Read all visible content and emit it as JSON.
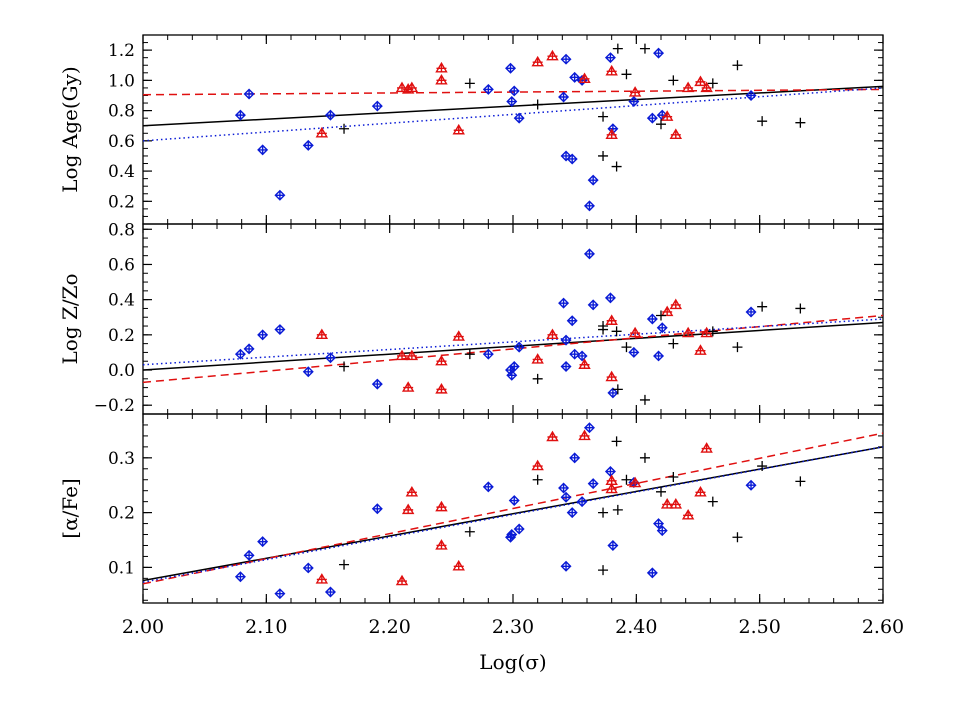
{
  "colors": {
    "blue": "#0a1bd6",
    "red": "#e01010",
    "black": "#000000",
    "axes": "#000000"
  },
  "chart_data": [
    {
      "type": "scatter",
      "panel": "top",
      "ylabel": "Log Age(Gy)",
      "xlim": [
        2.0,
        2.6
      ],
      "ylim": [
        0.05,
        1.3
      ],
      "yticks": [
        {
          "v": 0.2,
          "label": "0.2"
        },
        {
          "v": 0.4,
          "label": "0.4"
        },
        {
          "v": 0.6,
          "label": "0.6"
        },
        {
          "v": 0.8,
          "label": "0.8"
        },
        {
          "v": 1.0,
          "label": "1.0"
        },
        {
          "v": 1.2,
          "label": "1.2"
        }
      ],
      "yminor_step": 0.05,
      "series": [
        {
          "marker": "diamond",
          "color": "blue",
          "points": [
            [
              2.079,
              0.77
            ],
            [
              2.086,
              0.91
            ],
            [
              2.097,
              0.54
            ],
            [
              2.111,
              0.24
            ],
            [
              2.134,
              0.57
            ],
            [
              2.152,
              0.77
            ],
            [
              2.19,
              0.83
            ],
            [
              2.28,
              0.94
            ],
            [
              2.298,
              1.08
            ],
            [
              2.299,
              0.86
            ],
            [
              2.301,
              0.93
            ],
            [
              2.305,
              0.75
            ],
            [
              2.341,
              0.89
            ],
            [
              2.343,
              1.14
            ],
            [
              2.343,
              0.5
            ],
            [
              2.348,
              0.48
            ],
            [
              2.35,
              1.02
            ],
            [
              2.356,
              1.0
            ],
            [
              2.362,
              0.17
            ],
            [
              2.365,
              0.34
            ],
            [
              2.379,
              1.15
            ],
            [
              2.381,
              0.68
            ],
            [
              2.398,
              0.86
            ],
            [
              2.413,
              0.75
            ],
            [
              2.418,
              1.18
            ],
            [
              2.421,
              0.77
            ],
            [
              2.493,
              0.9
            ]
          ]
        },
        {
          "marker": "triangle",
          "color": "red",
          "points": [
            [
              2.145,
              0.65
            ],
            [
              2.21,
              0.95
            ],
            [
              2.215,
              0.94
            ],
            [
              2.218,
              0.95
            ],
            [
              2.242,
              1.08
            ],
            [
              2.242,
              1.0
            ],
            [
              2.256,
              0.67
            ],
            [
              2.32,
              1.12
            ],
            [
              2.332,
              1.16
            ],
            [
              2.358,
              1.01
            ],
            [
              2.38,
              1.06
            ],
            [
              2.38,
              0.64
            ],
            [
              2.399,
              0.92
            ],
            [
              2.425,
              0.76
            ],
            [
              2.432,
              0.64
            ],
            [
              2.442,
              0.95
            ],
            [
              2.452,
              0.99
            ],
            [
              2.457,
              0.95
            ]
          ]
        },
        {
          "marker": "plus",
          "color": "black",
          "points": [
            [
              2.163,
              0.68
            ],
            [
              2.265,
              0.98
            ],
            [
              2.32,
              0.84
            ],
            [
              2.373,
              0.76
            ],
            [
              2.373,
              0.5
            ],
            [
              2.384,
              0.43
            ],
            [
              2.385,
              1.21
            ],
            [
              2.392,
              1.04
            ],
            [
              2.407,
              1.21
            ],
            [
              2.42,
              0.71
            ],
            [
              2.43,
              1.0
            ],
            [
              2.462,
              0.98
            ],
            [
              2.482,
              1.1
            ],
            [
              2.502,
              0.73
            ],
            [
              2.533,
              0.72
            ]
          ]
        }
      ],
      "fits": [
        {
          "style": "solid",
          "color": "black",
          "y0": 0.7,
          "y1": 0.96
        },
        {
          "style": "dashed",
          "color": "red",
          "y0": 0.905,
          "y1": 0.94
        },
        {
          "style": "dotted",
          "color": "blue",
          "y0": 0.6,
          "y1": 0.95
        }
      ]
    },
    {
      "type": "scatter",
      "panel": "middle",
      "ylabel": "Log Z/Zo",
      "xlim": [
        2.0,
        2.6
      ],
      "ylim": [
        -0.25,
        0.83
      ],
      "yticks": [
        {
          "v": -0.2,
          "label": "−0.2"
        },
        {
          "v": 0.0,
          "label": "0.0"
        },
        {
          "v": 0.2,
          "label": "0.2"
        },
        {
          "v": 0.4,
          "label": "0.4"
        },
        {
          "v": 0.6,
          "label": "0.6"
        },
        {
          "v": 0.8,
          "label": "0.8"
        }
      ],
      "yminor_step": 0.05,
      "series": [
        {
          "marker": "diamond",
          "color": "blue",
          "points": [
            [
              2.079,
              0.09
            ],
            [
              2.086,
              0.12
            ],
            [
              2.097,
              0.2
            ],
            [
              2.111,
              0.23
            ],
            [
              2.134,
              -0.01
            ],
            [
              2.152,
              0.07
            ],
            [
              2.19,
              -0.08
            ],
            [
              2.28,
              0.09
            ],
            [
              2.298,
              0.0
            ],
            [
              2.299,
              -0.03
            ],
            [
              2.301,
              0.02
            ],
            [
              2.305,
              0.13
            ],
            [
              2.341,
              0.38
            ],
            [
              2.343,
              0.02
            ],
            [
              2.343,
              0.17
            ],
            [
              2.348,
              0.28
            ],
            [
              2.35,
              0.09
            ],
            [
              2.356,
              0.08
            ],
            [
              2.362,
              0.66
            ],
            [
              2.365,
              0.37
            ],
            [
              2.379,
              0.41
            ],
            [
              2.381,
              -0.13
            ],
            [
              2.398,
              0.1
            ],
            [
              2.413,
              0.29
            ],
            [
              2.418,
              0.08
            ],
            [
              2.421,
              0.24
            ],
            [
              2.493,
              0.33
            ]
          ]
        },
        {
          "marker": "triangle",
          "color": "red",
          "points": [
            [
              2.145,
              0.2
            ],
            [
              2.21,
              0.08
            ],
            [
              2.215,
              -0.1
            ],
            [
              2.218,
              0.08
            ],
            [
              2.242,
              -0.11
            ],
            [
              2.242,
              0.05
            ],
            [
              2.256,
              0.19
            ],
            [
              2.32,
              0.06
            ],
            [
              2.332,
              0.2
            ],
            [
              2.358,
              0.03
            ],
            [
              2.38,
              0.28
            ],
            [
              2.38,
              -0.04
            ],
            [
              2.399,
              0.21
            ],
            [
              2.425,
              0.33
            ],
            [
              2.432,
              0.37
            ],
            [
              2.442,
              0.21
            ],
            [
              2.452,
              0.11
            ],
            [
              2.457,
              0.21
            ]
          ]
        },
        {
          "marker": "plus",
          "color": "black",
          "points": [
            [
              2.163,
              0.02
            ],
            [
              2.265,
              0.09
            ],
            [
              2.32,
              -0.05
            ],
            [
              2.373,
              0.23
            ],
            [
              2.373,
              0.25
            ],
            [
              2.384,
              0.22
            ],
            [
              2.385,
              -0.11
            ],
            [
              2.392,
              0.13
            ],
            [
              2.407,
              -0.17
            ],
            [
              2.42,
              0.31
            ],
            [
              2.43,
              0.15
            ],
            [
              2.462,
              0.22
            ],
            [
              2.482,
              0.13
            ],
            [
              2.502,
              0.36
            ],
            [
              2.533,
              0.35
            ]
          ]
        }
      ],
      "fits": [
        {
          "style": "solid",
          "color": "black",
          "y0": 0.0,
          "y1": 0.27
        },
        {
          "style": "dashed",
          "color": "red",
          "y0": -0.07,
          "y1": 0.31
        },
        {
          "style": "dotted",
          "color": "blue",
          "y0": 0.03,
          "y1": 0.29
        }
      ]
    },
    {
      "type": "scatter",
      "panel": "bottom",
      "ylabel": "[α/Fe]",
      "xlabel": "Log(σ)",
      "xlim": [
        2.0,
        2.6
      ],
      "ylim": [
        0.035,
        0.38
      ],
      "yticks": [
        {
          "v": 0.1,
          "label": "0.1"
        },
        {
          "v": 0.2,
          "label": "0.2"
        },
        {
          "v": 0.3,
          "label": "0.3"
        }
      ],
      "yminor_step": 0.02,
      "xticks": [
        {
          "v": 2.0,
          "label": "2.00"
        },
        {
          "v": 2.1,
          "label": "2.10"
        },
        {
          "v": 2.2,
          "label": "2.20"
        },
        {
          "v": 2.3,
          "label": "2.30"
        },
        {
          "v": 2.4,
          "label": "2.40"
        },
        {
          "v": 2.5,
          "label": "2.50"
        },
        {
          "v": 2.6,
          "label": "2.60"
        }
      ],
      "xminor_step": 0.02,
      "series": [
        {
          "marker": "diamond",
          "color": "blue",
          "points": [
            [
              2.079,
              0.083
            ],
            [
              2.086,
              0.122
            ],
            [
              2.097,
              0.147
            ],
            [
              2.111,
              0.052
            ],
            [
              2.134,
              0.099
            ],
            [
              2.152,
              0.055
            ],
            [
              2.19,
              0.207
            ],
            [
              2.28,
              0.247
            ],
            [
              2.298,
              0.155
            ],
            [
              2.299,
              0.16
            ],
            [
              2.301,
              0.222
            ],
            [
              2.305,
              0.17
            ],
            [
              2.341,
              0.245
            ],
            [
              2.343,
              0.102
            ],
            [
              2.343,
              0.228
            ],
            [
              2.348,
              0.2
            ],
            [
              2.35,
              0.3
            ],
            [
              2.356,
              0.22
            ],
            [
              2.362,
              0.355
            ],
            [
              2.365,
              0.253
            ],
            [
              2.379,
              0.275
            ],
            [
              2.381,
              0.14
            ],
            [
              2.398,
              0.255
            ],
            [
              2.413,
              0.09
            ],
            [
              2.418,
              0.18
            ],
            [
              2.421,
              0.167
            ],
            [
              2.493,
              0.25
            ]
          ]
        },
        {
          "marker": "triangle",
          "color": "red",
          "points": [
            [
              2.145,
              0.078
            ],
            [
              2.21,
              0.075
            ],
            [
              2.215,
              0.205
            ],
            [
              2.218,
              0.237
            ],
            [
              2.242,
              0.21
            ],
            [
              2.242,
              0.14
            ],
            [
              2.256,
              0.102
            ],
            [
              2.32,
              0.285
            ],
            [
              2.332,
              0.338
            ],
            [
              2.358,
              0.34
            ],
            [
              2.38,
              0.258
            ],
            [
              2.38,
              0.243
            ],
            [
              2.399,
              0.254
            ],
            [
              2.425,
              0.215
            ],
            [
              2.432,
              0.215
            ],
            [
              2.442,
              0.195
            ],
            [
              2.452,
              0.237
            ],
            [
              2.457,
              0.317
            ]
          ]
        },
        {
          "marker": "plus",
          "color": "black",
          "points": [
            [
              2.163,
              0.105
            ],
            [
              2.265,
              0.165
            ],
            [
              2.32,
              0.26
            ],
            [
              2.373,
              0.095
            ],
            [
              2.373,
              0.2
            ],
            [
              2.384,
              0.33
            ],
            [
              2.385,
              0.205
            ],
            [
              2.392,
              0.26
            ],
            [
              2.407,
              0.3
            ],
            [
              2.42,
              0.238
            ],
            [
              2.43,
              0.265
            ],
            [
              2.462,
              0.22
            ],
            [
              2.482,
              0.155
            ],
            [
              2.502,
              0.285
            ],
            [
              2.533,
              0.257
            ]
          ]
        }
      ],
      "fits": [
        {
          "style": "solid",
          "color": "black",
          "y0": 0.076,
          "y1": 0.32
        },
        {
          "style": "dashed",
          "color": "red",
          "y0": 0.07,
          "y1": 0.345
        },
        {
          "style": "dotted",
          "color": "blue",
          "y0": 0.073,
          "y1": 0.32
        }
      ]
    }
  ]
}
